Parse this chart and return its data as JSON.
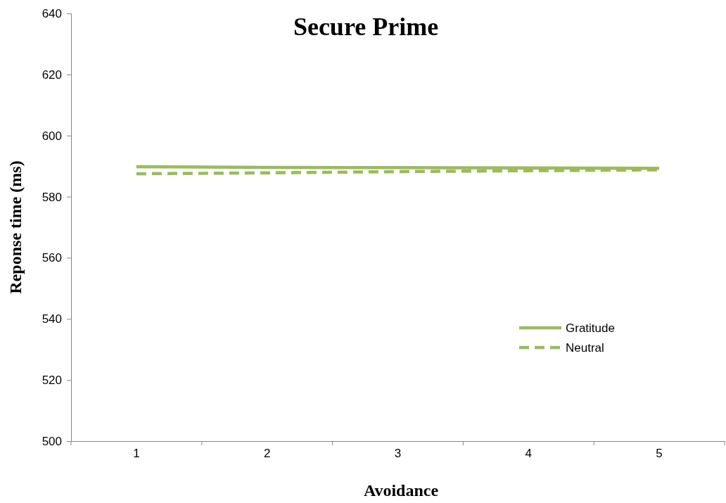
{
  "chart_data": {
    "type": "line",
    "title": "Secure Prime",
    "xlabel": "Avoidance",
    "ylabel": "Reponse time (ms)",
    "categories": [
      "1",
      "2",
      "3",
      "4",
      "5"
    ],
    "series": [
      {
        "name": "Gratitude",
        "color": "#9bbb59",
        "values": [
          589.8,
          589.6,
          589.5,
          589.4,
          589.3
        ],
        "line_style": "solid"
      },
      {
        "name": "Neutral",
        "color": "#9bbb59",
        "values": [
          587.5,
          587.8,
          588.2,
          588.5,
          588.8
        ],
        "line_style": "dashed"
      }
    ],
    "ylim": [
      500,
      640
    ],
    "yticks": [
      500,
      520,
      540,
      560,
      580,
      600,
      620,
      640
    ],
    "grid": false,
    "legend": "right",
    "marker": "none"
  }
}
